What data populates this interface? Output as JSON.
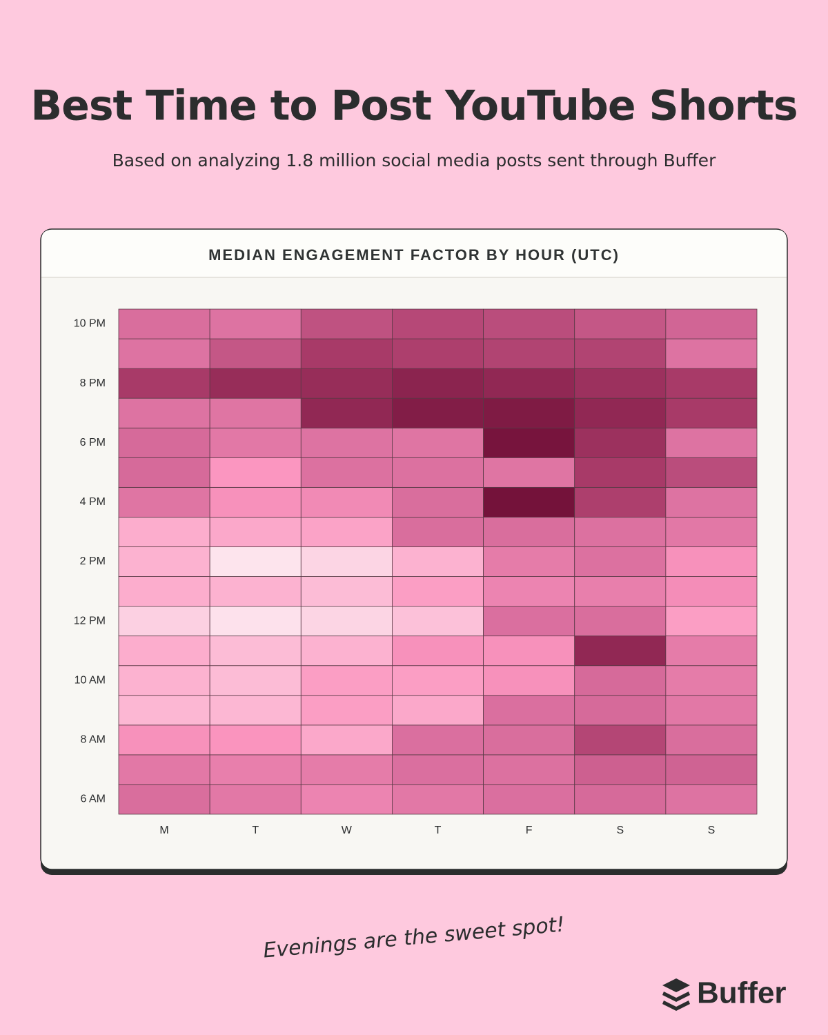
{
  "chart_data": {
    "type": "heatmap",
    "title": "Best Time to Post YouTube Shorts",
    "subtitle": "Based on analyzing 1.8 million social media posts sent through Buffer",
    "panel_title": "MEDIAN ENGAGEMENT FACTOR BY HOUR (UTC)",
    "annotation": "Evenings are the sweet spot!",
    "brand": "Buffer",
    "categories": [
      "M",
      "T",
      "W",
      "T",
      "F",
      "S",
      "S"
    ],
    "rows": [
      "6 AM",
      null,
      "8 AM",
      null,
      "10 AM",
      null,
      "12 PM",
      null,
      "2 PM",
      null,
      "4 PM",
      null,
      "6 PM",
      null,
      "8 PM",
      null,
      "10 PM"
    ],
    "values": [
      [
        58,
        52,
        45,
        52,
        57,
        60,
        55
      ],
      [
        52,
        48,
        50,
        57,
        56,
        64,
        63
      ],
      [
        38,
        36,
        28,
        57,
        58,
        75,
        58
      ],
      [
        22,
        22,
        32,
        28,
        57,
        60,
        52
      ],
      [
        24,
        20,
        32,
        32,
        38,
        60,
        50
      ],
      [
        26,
        20,
        24,
        38,
        38,
        88,
        50
      ],
      [
        12,
        5,
        10,
        18,
        57,
        58,
        32
      ],
      [
        26,
        24,
        20,
        32,
        45,
        48,
        40
      ],
      [
        24,
        4,
        10,
        24,
        50,
        56,
        38
      ],
      [
        26,
        28,
        30,
        58,
        58,
        56,
        52
      ],
      [
        54,
        38,
        42,
        58,
        98,
        78,
        55
      ],
      [
        60,
        35,
        56,
        56,
        54,
        80,
        72
      ],
      [
        60,
        52,
        55,
        54,
        97,
        84,
        55
      ],
      [
        55,
        54,
        88,
        93,
        94,
        88,
        80
      ],
      [
        80,
        86,
        86,
        90,
        88,
        84,
        80
      ],
      [
        55,
        68,
        80,
        78,
        76,
        76,
        55
      ],
      [
        58,
        55,
        70,
        74,
        72,
        68,
        62
      ]
    ],
    "zlim": [
      0,
      100
    ],
    "colorscale": [
      [
        0,
        "#fdeef3"
      ],
      [
        35,
        "#fb96c0"
      ],
      [
        60,
        "#d66a9a"
      ],
      [
        80,
        "#a83a68"
      ],
      [
        100,
        "#6e0d35"
      ]
    ]
  }
}
